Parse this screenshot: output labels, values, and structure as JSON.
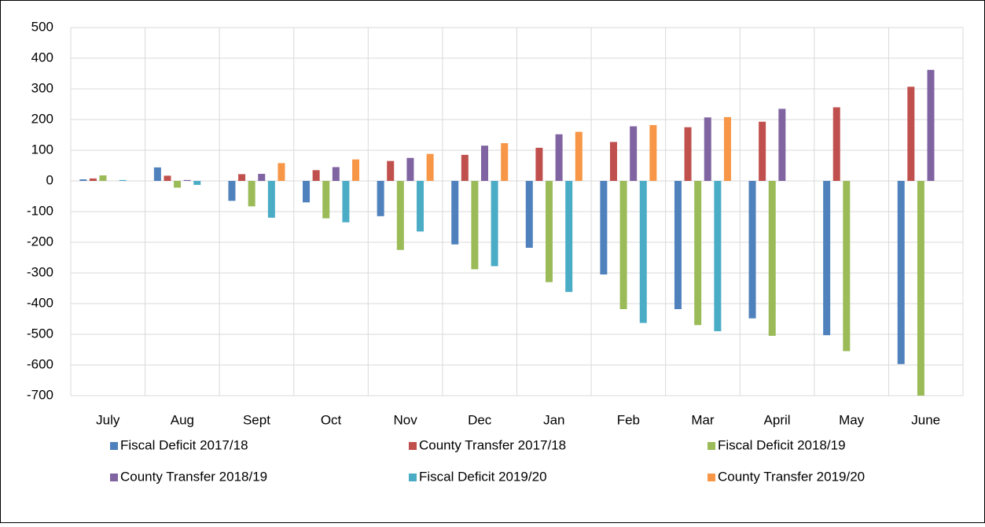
{
  "chart_data": {
    "type": "bar",
    "categories": [
      "July",
      "Aug",
      "Sept",
      "Oct",
      "Nov",
      "Dec",
      "Jan",
      "Feb",
      "Mar",
      "April",
      "May",
      "June"
    ],
    "series": [
      {
        "name": "Fiscal Deficit 2017/18",
        "color": "#4f81bd",
        "values": [
          5,
          44,
          -65,
          -70,
          -115,
          -207,
          -218,
          -305,
          -418,
          -448,
          -503,
          -597
        ]
      },
      {
        "name": "County Transfer 2017/18",
        "color": "#c0504d",
        "values": [
          8,
          17,
          22,
          35,
          65,
          85,
          108,
          127,
          175,
          193,
          240,
          307
        ]
      },
      {
        "name": "Fiscal Deficit 2018/19",
        "color": "#9bbb59",
        "values": [
          18,
          -22,
          -83,
          -122,
          -225,
          -288,
          -330,
          -418,
          -470,
          -505,
          -555,
          -710
        ]
      },
      {
        "name": "County Transfer 2018/19",
        "color": "#8064a2",
        "values": [
          null,
          3,
          23,
          45,
          75,
          115,
          152,
          178,
          207,
          235,
          null,
          362
        ]
      },
      {
        "name": "Fiscal Deficit 2019/20",
        "color": "#4bacc6",
        "values": [
          3,
          -13,
          -120,
          -135,
          -165,
          -278,
          -362,
          -463,
          -490,
          null,
          null,
          null
        ]
      },
      {
        "name": "County Transfer 2019/20",
        "color": "#f79646",
        "values": [
          null,
          null,
          58,
          70,
          88,
          123,
          160,
          182,
          208,
          null,
          null,
          null
        ]
      }
    ],
    "ylim": [
      -700,
      500
    ],
    "yticks": [
      -700,
      -600,
      -500,
      -400,
      -300,
      -200,
      -100,
      0,
      100,
      200,
      300,
      400,
      500
    ],
    "grid": true,
    "legend": "bottom"
  }
}
